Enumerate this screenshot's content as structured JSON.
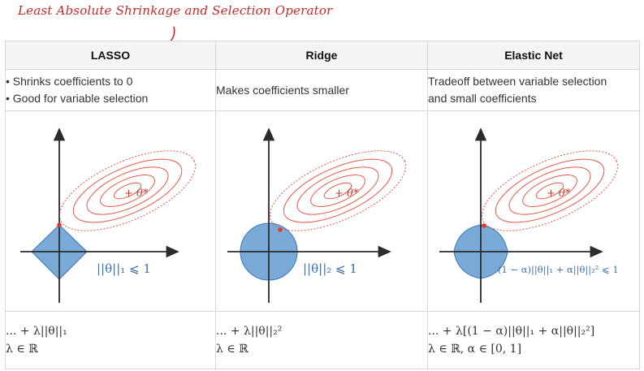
{
  "annotation": "Least Absolute Shrinkage and Selection Operator",
  "columns": [
    {
      "header": "LASSO",
      "desc": [
        "Shrinks coefficients to 0",
        "Good for variable selection"
      ],
      "constraint_label": "||θ||₁ ⩽ 1",
      "optimum_label": "+ θ*",
      "formula_line1": "... + λ||θ||₁",
      "formula_line2": "λ ∈ ℝ"
    },
    {
      "header": "Ridge",
      "desc": [
        "Makes coefficients smaller"
      ],
      "constraint_label": "||θ||₂ ⩽ 1",
      "optimum_label": "+ θ*",
      "formula_line1": "... + λ||θ||₂²",
      "formula_line2": "λ ∈ ℝ"
    },
    {
      "header": "Elastic Net",
      "desc": [
        "Tradeoff between variable selection",
        "and small coefficients"
      ],
      "constraint_label": "(1 − α)||θ||₁ + α||θ||₂² ⩽ 1",
      "optimum_label": "+ θ*",
      "formula_line1": "... + λ[(1 − α)||θ||₁ + α||θ||₂²]",
      "formula_line2": "λ ∈ ℝ, α ∈ [0, 1]"
    }
  ],
  "colors": {
    "annotation": "#c62828",
    "contour": "#e8574a",
    "region_fill": "#7aaad8",
    "region_stroke": "#3e78b8",
    "label_blue": "#3d6fae",
    "axis": "#2b2b2b"
  }
}
